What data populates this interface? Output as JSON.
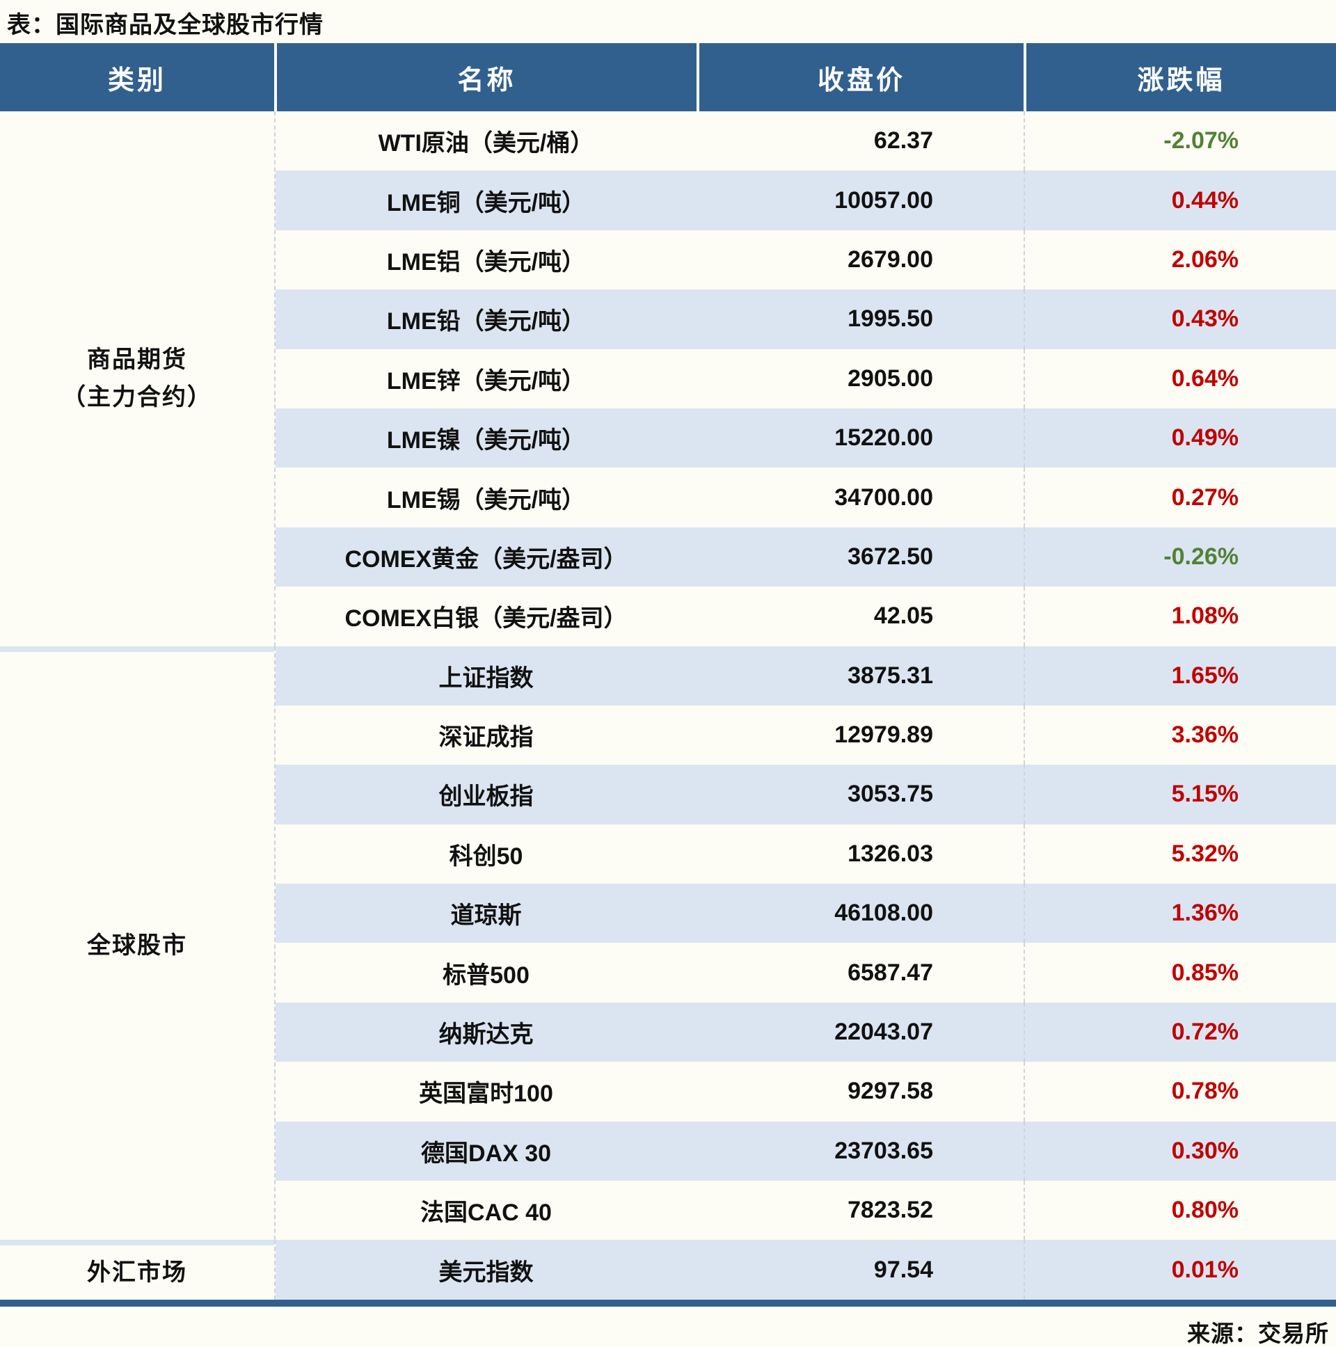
{
  "chart_data": {
    "type": "table",
    "title": "表：国际商品及全球股市行情",
    "source": "来源：交易所",
    "columns": [
      "类别",
      "名称",
      "收盘价",
      "涨跌幅"
    ],
    "colors": {
      "header_bg": "#31608f",
      "row_alt": "#dbe5f1",
      "up_red": "#c00000",
      "down_green": "#538135"
    },
    "sections": [
      {
        "category": "商品期货（主力合约）",
        "category_lines": [
          "商品期货",
          "（主力合约）"
        ],
        "rows": [
          {
            "name": "WTI原油（美元/桶）",
            "close": "62.37",
            "change": "-2.07%",
            "dir": "down"
          },
          {
            "name": "LME铜（美元/吨）",
            "close": "10057.00",
            "change": "0.44%",
            "dir": "up"
          },
          {
            "name": "LME铝（美元/吨）",
            "close": "2679.00",
            "change": "2.06%",
            "dir": "up"
          },
          {
            "name": "LME铅（美元/吨）",
            "close": "1995.50",
            "change": "0.43%",
            "dir": "up"
          },
          {
            "name": "LME锌（美元/吨）",
            "close": "2905.00",
            "change": "0.64%",
            "dir": "up"
          },
          {
            "name": "LME镍（美元/吨）",
            "close": "15220.00",
            "change": "0.49%",
            "dir": "up"
          },
          {
            "name": "LME锡（美元/吨）",
            "close": "34700.00",
            "change": "0.27%",
            "dir": "up"
          },
          {
            "name": "COMEX黄金（美元/盎司）",
            "close": "3672.50",
            "change": "-0.26%",
            "dir": "down"
          },
          {
            "name": "COMEX白银（美元/盎司）",
            "close": "42.05",
            "change": "1.08%",
            "dir": "up"
          }
        ]
      },
      {
        "category": "全球股市",
        "category_lines": [
          "全球股市"
        ],
        "rows": [
          {
            "name": "上证指数",
            "close": "3875.31",
            "change": "1.65%",
            "dir": "up"
          },
          {
            "name": "深证成指",
            "close": "12979.89",
            "change": "3.36%",
            "dir": "up"
          },
          {
            "name": "创业板指",
            "close": "3053.75",
            "change": "5.15%",
            "dir": "up"
          },
          {
            "name": "科创50",
            "close": "1326.03",
            "change": "5.32%",
            "dir": "up"
          },
          {
            "name": "道琼斯",
            "close": "46108.00",
            "change": "1.36%",
            "dir": "up"
          },
          {
            "name": "标普500",
            "close": "6587.47",
            "change": "0.85%",
            "dir": "up"
          },
          {
            "name": "纳斯达克",
            "close": "22043.07",
            "change": "0.72%",
            "dir": "up"
          },
          {
            "name": "英国富时100",
            "close": "9297.58",
            "change": "0.78%",
            "dir": "up"
          },
          {
            "name": "德国DAX 30",
            "close": "23703.65",
            "change": "0.30%",
            "dir": "up"
          },
          {
            "name": "法国CAC 40",
            "close": "7823.52",
            "change": "0.80%",
            "dir": "up"
          }
        ]
      },
      {
        "category": "外汇市场",
        "category_lines": [
          "外汇市场"
        ],
        "rows": [
          {
            "name": "美元指数",
            "close": "97.54",
            "change": "0.01%",
            "dir": "up"
          }
        ]
      }
    ]
  }
}
